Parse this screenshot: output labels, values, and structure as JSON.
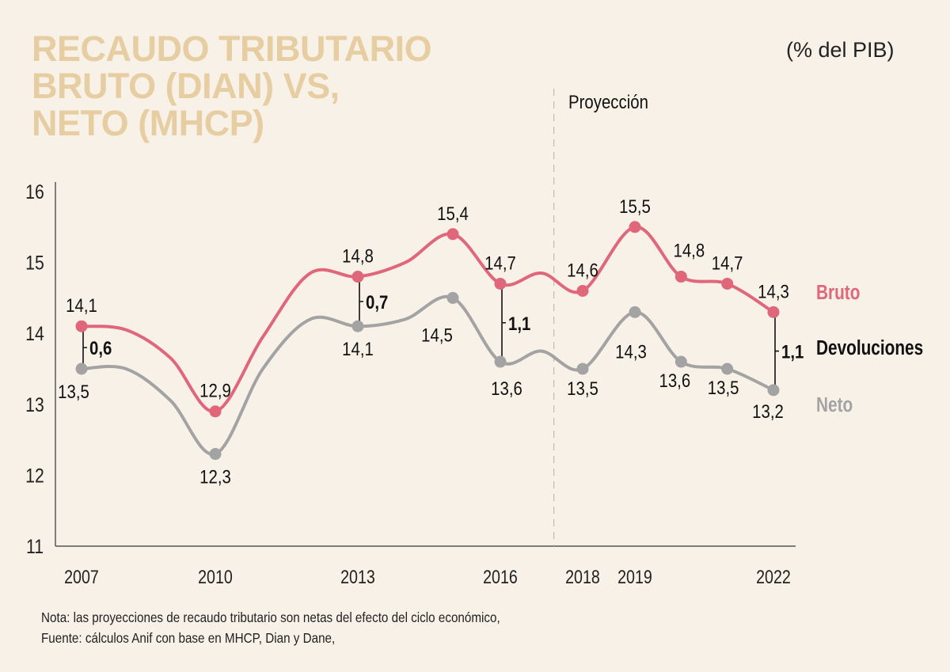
{
  "chart_data": {
    "type": "line",
    "title": "RECAUDO TRIBUTARIO BRUTO (DIAN) VS, NETO (MHCP)",
    "title_lines": [
      "RECAUDO TRIBUTARIO",
      "BRUTO (DIAN) VS,",
      "NETO (MHCP)"
    ],
    "unit_label": "(% del PIB)",
    "projection_label": "Proyección",
    "projection_start_year": 2017.3,
    "xlabel": "",
    "ylabel": "",
    "ylim": [
      11,
      16
    ],
    "yticks": [
      "11",
      "12",
      "13",
      "14",
      "15",
      "16"
    ],
    "ytick_values": [
      11,
      12,
      13,
      14,
      15,
      16
    ],
    "xtick_labels": [
      "2007",
      "2010",
      "2013",
      "2016",
      "2018",
      "2019",
      "2022"
    ],
    "xtick_values": [
      2007,
      2010,
      2013,
      2016,
      2018,
      2019,
      2022
    ],
    "grid": false,
    "series": [
      {
        "name": "Bruto",
        "color": "#e0677a",
        "x": [
          2007,
          2008,
          2009,
          2010,
          2011,
          2012,
          2013,
          2014,
          2015,
          2016,
          2017,
          2018,
          2019,
          2020,
          2021,
          2022
        ],
        "values": [
          14.1,
          14.05,
          13.65,
          12.9,
          13.95,
          14.85,
          14.8,
          15.0,
          15.4,
          14.7,
          14.85,
          14.6,
          15.5,
          14.8,
          14.7,
          14.3
        ],
        "markers": [
          2007,
          2010,
          2013,
          2015,
          2016,
          2018,
          2019,
          2020,
          2021,
          2022
        ],
        "labels": [
          {
            "x": 2007,
            "text": "14,1",
            "pos": "above"
          },
          {
            "x": 2010,
            "text": "12,9",
            "pos": "above"
          },
          {
            "x": 2013,
            "text": "14,8",
            "pos": "above"
          },
          {
            "x": 2015,
            "text": "15,4",
            "pos": "above"
          },
          {
            "x": 2016,
            "text": "14,7",
            "pos": "above"
          },
          {
            "x": 2018,
            "text": "14,6",
            "pos": "above"
          },
          {
            "x": 2019,
            "text": "15,5",
            "pos": "above"
          },
          {
            "x": 2020,
            "text": "14,8",
            "pos": "above"
          },
          {
            "x": 2021,
            "text": "14,7",
            "pos": "above"
          },
          {
            "x": 2022,
            "text": "14,3",
            "pos": "above"
          }
        ]
      },
      {
        "name": "Neto",
        "color": "#a3a3a3",
        "x": [
          2007,
          2008,
          2009,
          2010,
          2011,
          2012,
          2013,
          2014,
          2015,
          2016,
          2017,
          2018,
          2019,
          2020,
          2021,
          2022
        ],
        "values": [
          13.5,
          13.5,
          13.05,
          12.3,
          13.5,
          14.2,
          14.1,
          14.2,
          14.5,
          13.6,
          13.75,
          13.5,
          14.3,
          13.6,
          13.5,
          13.2
        ],
        "markers": [
          2007,
          2010,
          2013,
          2015,
          2016,
          2018,
          2019,
          2020,
          2021,
          2022
        ],
        "labels": [
          {
            "x": 2007,
            "text": "13,5",
            "pos": "below"
          },
          {
            "x": 2010,
            "text": "12,3",
            "pos": "below"
          },
          {
            "x": 2013,
            "text": "14,1",
            "pos": "below"
          },
          {
            "x": 2015,
            "text": "14,5",
            "pos": "below"
          },
          {
            "x": 2016,
            "text": "13,6",
            "pos": "below"
          },
          {
            "x": 2018,
            "text": "13,5",
            "pos": "below"
          },
          {
            "x": 2019,
            "text": "14,3",
            "pos": "below"
          },
          {
            "x": 2020,
            "text": "13,6",
            "pos": "below"
          },
          {
            "x": 2021,
            "text": "13,5",
            "pos": "below"
          },
          {
            "x": 2022,
            "text": "13,2",
            "pos": "below"
          }
        ]
      }
    ],
    "gap_annotations": [
      {
        "x": 2007,
        "top": 14.1,
        "bottom": 13.5,
        "text": "0,6"
      },
      {
        "x": 2013,
        "top": 14.8,
        "bottom": 14.1,
        "text": "0,7"
      },
      {
        "x": 2016,
        "top": 14.7,
        "bottom": 13.6,
        "text": "1,1"
      },
      {
        "x": 2022,
        "top": 14.3,
        "bottom": 13.2,
        "text": "1,1"
      }
    ],
    "legend": [
      {
        "name": "Bruto",
        "color": "#e0677a"
      },
      {
        "name": "Devoluciones",
        "color": "#111111"
      },
      {
        "name": "Neto",
        "color": "#a3a3a3"
      }
    ],
    "legend_placement": "right"
  },
  "footnote": {
    "note": "Nota: las proyecciones de recaudo tributario son netas del efecto del ciclo económico,",
    "source": "Fuente: cálculos Anif con base en MHCP, Dian y Dane,"
  },
  "colors": {
    "title": "#e7cea2",
    "background": "#f8f1e8",
    "bruto": "#e0677a",
    "neto": "#a3a3a3"
  }
}
